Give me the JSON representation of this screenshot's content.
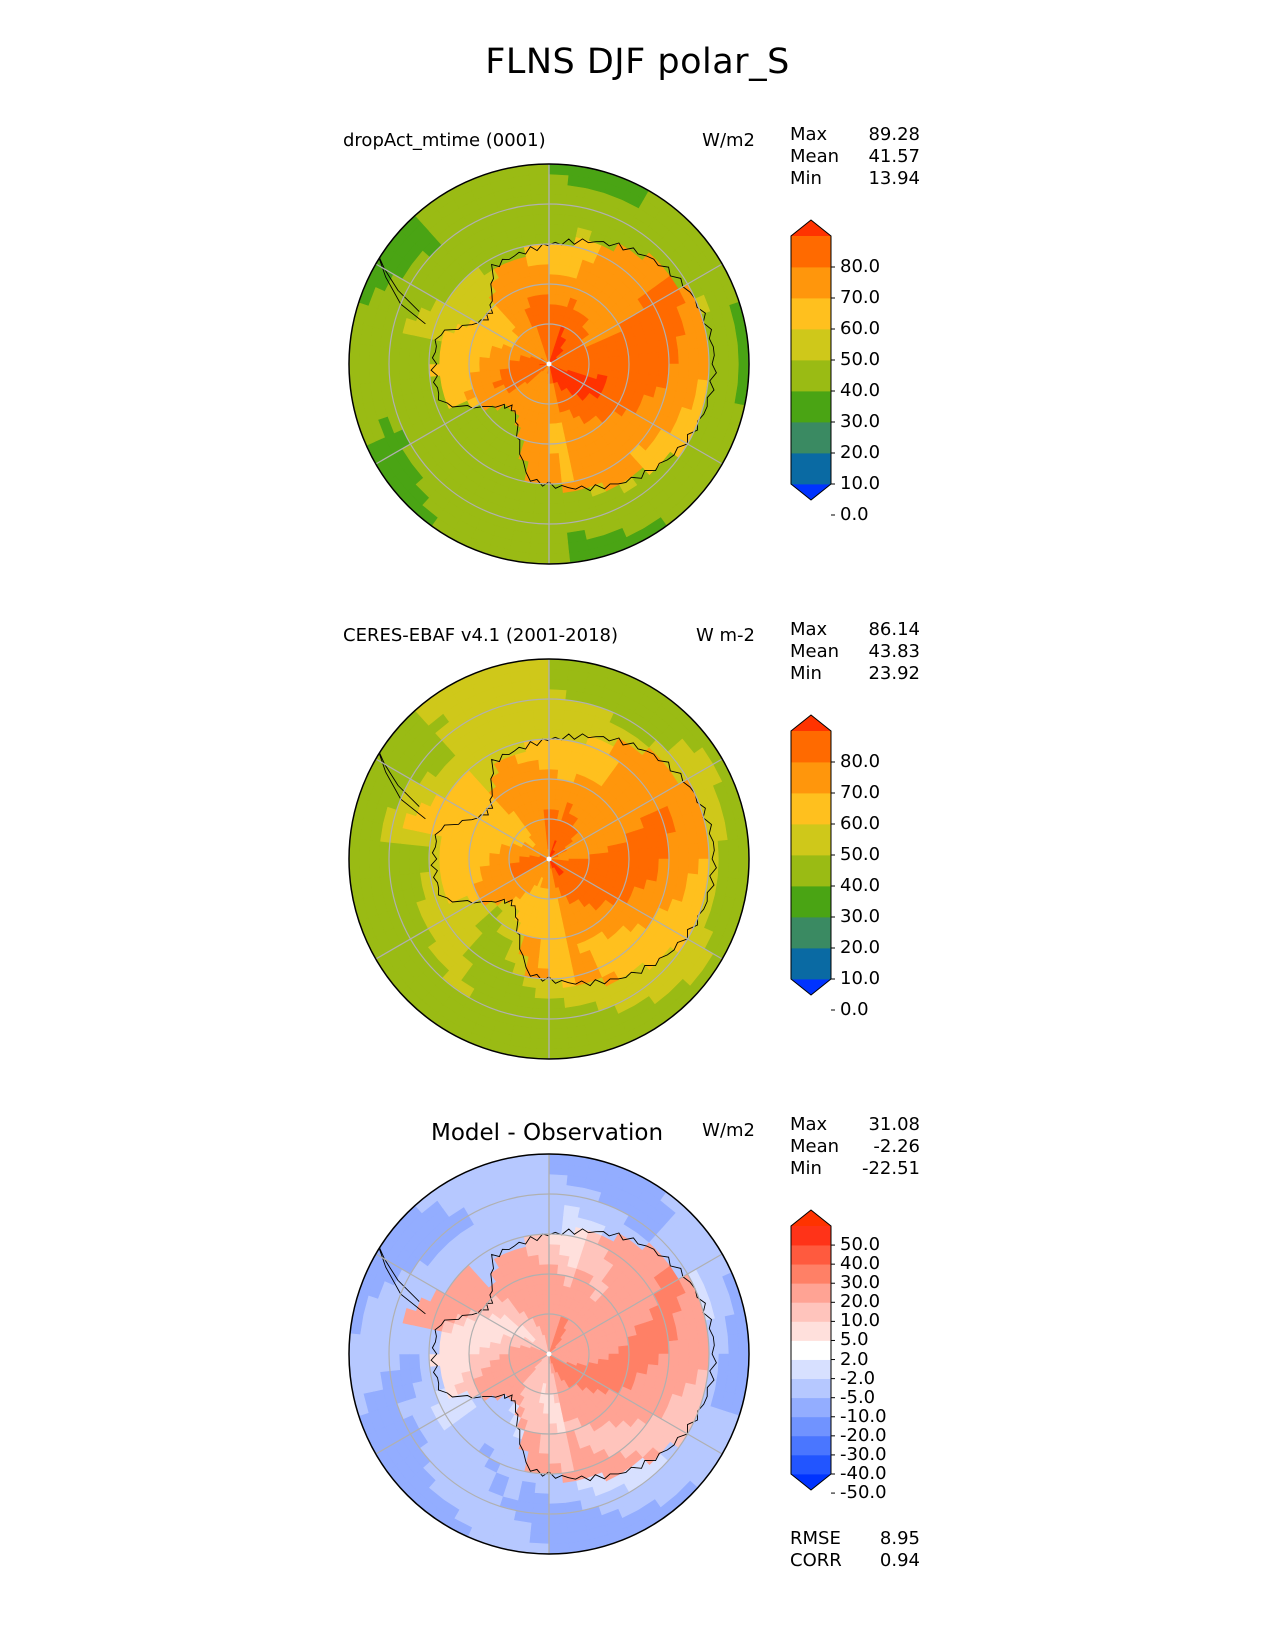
{
  "title": "FLNS DJF polar_S",
  "panels": [
    {
      "id": "model",
      "left_label": "dropAct_mtime (0001)",
      "units": "W/m2",
      "stats": [
        {
          "label": "Max",
          "value": "89.28"
        },
        {
          "label": "Mean",
          "value": "41.57"
        },
        {
          "label": "Min",
          "value": "13.94"
        }
      ],
      "colorbar": {
        "ticks": [
          "80.0",
          "70.0",
          "60.0",
          "50.0",
          "40.0",
          "30.0",
          "20.0",
          "10.0",
          "0.0"
        ],
        "colors": [
          "#0033ff",
          "#0a6aa3",
          "#3a8a62",
          "#4aa414",
          "#9abb14",
          "#cfc81a",
          "#ffc01e",
          "#ff960c",
          "#ff6a00",
          "#ff3300"
        ]
      },
      "field": {
        "pole": 75,
        "coast": 57,
        "ocean_near": 38,
        "ocean_far": 30,
        "peninsula": 48,
        "ross_sea": 36,
        "weddell": 42
      }
    },
    {
      "id": "observation",
      "left_label": "CERES-EBAF v4.1 (2001-2018)",
      "units": "W m-2",
      "stats": [
        {
          "label": "Max",
          "value": "86.14"
        },
        {
          "label": "Mean",
          "value": "43.83"
        },
        {
          "label": "Min",
          "value": "23.92"
        }
      ],
      "colorbar": {
        "ticks": [
          "80.0",
          "70.0",
          "60.0",
          "50.0",
          "40.0",
          "30.0",
          "20.0",
          "10.0",
          "0.0"
        ],
        "colors": [
          "#0033ff",
          "#0a6aa3",
          "#3a8a62",
          "#4aa414",
          "#9abb14",
          "#cfc81a",
          "#ffc01e",
          "#ff960c",
          "#ff6a00",
          "#ff3300"
        ]
      },
      "field": {
        "pole": 70,
        "coast": 55,
        "ocean_near": 44,
        "ocean_far": 34,
        "peninsula": 50,
        "ross_sea": 40,
        "weddell": 46
      }
    },
    {
      "id": "difference",
      "left_label": "",
      "center_label": "Model - Observation",
      "units": "W/m2",
      "stats": [
        {
          "label": "Max",
          "value": "31.08"
        },
        {
          "label": "Mean",
          "value": "-2.26"
        },
        {
          "label": "Min",
          "value": "-22.51"
        }
      ],
      "colorbar": {
        "ticks": [
          "50.0",
          "40.0",
          "30.0",
          "20.0",
          "10.0",
          "5.0",
          "2.0",
          "-2.0",
          "-5.0",
          "-10.0",
          "-20.0",
          "-30.0",
          "-40.0",
          "-50.0"
        ],
        "colors": [
          "#0033ff",
          "#2255ff",
          "#4a76ff",
          "#7093ff",
          "#93adff",
          "#b6c8ff",
          "#d7e0ff",
          "#ffffff",
          "#ffe0dc",
          "#ffc4bc",
          "#ffa394",
          "#ff8066",
          "#ff5a3e",
          "#ff3318",
          "#ff3300"
        ]
      },
      "metrics": [
        {
          "label": "RMSE",
          "value": "8.95"
        },
        {
          "label": "CORR",
          "value": "0.94"
        }
      ],
      "field": {
        "pole": 12,
        "coast": 8,
        "ocean_near": -6,
        "ocean_far": -12,
        "peninsula": 14,
        "ross_sea": -4,
        "weddell": -8
      }
    }
  ]
}
